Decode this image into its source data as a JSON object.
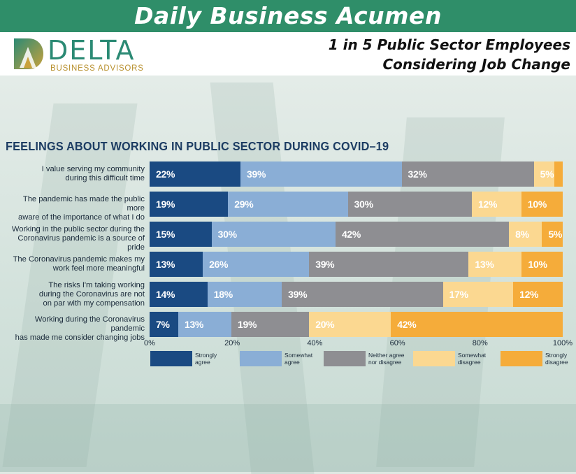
{
  "banner": {
    "title": "Daily Business Acumen"
  },
  "logo": {
    "name": "DELTA",
    "subtitle": "BUSINESS ADVISORS"
  },
  "headline": {
    "line1": "1 in 5 Public Sector Employees",
    "line2": "Considering Job Change"
  },
  "colors": {
    "banner": "#2f8e69",
    "strongly_agree": "#1a4a82",
    "somewhat_agree": "#8aaed6",
    "neither": "#8e8e92",
    "somewhat_disagree": "#fbd891",
    "strongly_disagree": "#f5ac3a",
    "title": "#1d3d63"
  },
  "chart_data": {
    "type": "bar",
    "orientation": "horizontal-stacked",
    "title": "FEELINGS ABOUT WORKING IN PUBLIC SECTOR DURING COVID–19",
    "categories": [
      [
        "I value serving my community",
        "during this difficult time"
      ],
      [
        "The pandemic has made the public more",
        "aware of the importance of what I do"
      ],
      [
        "Working in the public sector during the",
        "Coronavirus pandemic is a source of pride"
      ],
      [
        "The Coronavirus pandemic makes my",
        "work feel more meaningful"
      ],
      [
        "The risks I'm taking working",
        "during the Coronavirus are not",
        "on par with my compensation"
      ],
      [
        "Working during the Coronavirus pandemic",
        "has made me consider changing jobs"
      ]
    ],
    "series": [
      {
        "name": "Strongly agree",
        "legend_lines": [
          "Strongly",
          "agree"
        ],
        "values": [
          22,
          19,
          15,
          13,
          14,
          7
        ]
      },
      {
        "name": "Somewhat agree",
        "legend_lines": [
          "Somewhat",
          "agree"
        ],
        "values": [
          39,
          29,
          30,
          26,
          18,
          13
        ]
      },
      {
        "name": "Neither agree nor disagree",
        "legend_lines": [
          "Neither agree",
          "nor disagree"
        ],
        "values": [
          32,
          30,
          42,
          39,
          39,
          19
        ]
      },
      {
        "name": "Somewhat disagree",
        "legend_lines": [
          "Somewhat",
          "disagree"
        ],
        "values": [
          5,
          12,
          8,
          13,
          17,
          20
        ]
      },
      {
        "name": "Strongly disagree",
        "legend_lines": [
          "Strongly",
          "disagree"
        ],
        "values": [
          2,
          10,
          5,
          10,
          12,
          42
        ]
      }
    ],
    "bar_labels": [
      [
        "22%",
        "39%",
        "32%",
        "5%",
        ""
      ],
      [
        "19%",
        "29%",
        "30%",
        "12%",
        "10%"
      ],
      [
        "15%",
        "30%",
        "42%",
        "8%",
        "5%"
      ],
      [
        "13%",
        "26%",
        "39%",
        "13%",
        "10%"
      ],
      [
        "14%",
        "18%",
        "39%",
        "17%",
        "12%"
      ],
      [
        "7%",
        "13%",
        "19%",
        "20%",
        "42%"
      ]
    ],
    "x_ticks": [
      "0%",
      "20%",
      "40%",
      "60%",
      "80%",
      "100%"
    ],
    "xlim": [
      0,
      100
    ],
    "legend_position": "bottom"
  }
}
